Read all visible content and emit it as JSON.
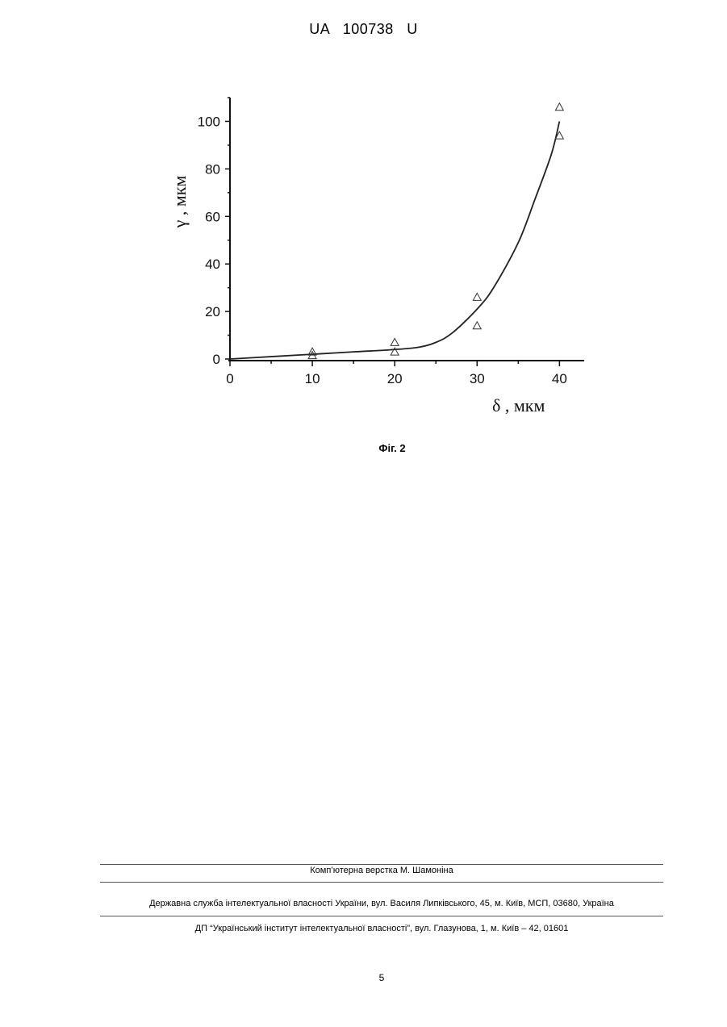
{
  "document": {
    "header": "UA   100738   U",
    "figure_caption": "Фіг. 2",
    "credit": "Комп’ютерна верстка М. Шамоніна",
    "publisher_line": "Державна служба інтелектуальної власності України, вул. Василя Липківського, 45, м. Київ, МСП, 03680, Україна",
    "institute_line": "ДП “Український інститут інтелектуальної власності”, вул. Глазунова, 1, м. Київ – 42, 01601",
    "page_number": "5"
  },
  "chart_data": {
    "type": "scatter",
    "title": "",
    "xlabel": "δ , мкм",
    "ylabel": "γ , мкм",
    "xlim": [
      0,
      43
    ],
    "ylim": [
      0,
      110
    ],
    "x_ticks": [
      "0",
      "10",
      "20",
      "30",
      "40"
    ],
    "y_ticks": [
      "0",
      "20",
      "40",
      "60",
      "80",
      "100"
    ],
    "grid": false,
    "series": [
      {
        "kind": "points",
        "marker": "triangle",
        "points": [
          {
            "x": 10,
            "y": 3
          },
          {
            "x": 10,
            "y": 1.5
          },
          {
            "x": 20,
            "y": 7
          },
          {
            "x": 20,
            "y": 3
          },
          {
            "x": 30,
            "y": 26
          },
          {
            "x": 30,
            "y": 14
          },
          {
            "x": 40,
            "y": 106
          },
          {
            "x": 40,
            "y": 94
          }
        ]
      },
      {
        "kind": "curve",
        "points": [
          {
            "x": 0,
            "y": 0
          },
          {
            "x": 5,
            "y": 1
          },
          {
            "x": 10,
            "y": 2
          },
          {
            "x": 15,
            "y": 3
          },
          {
            "x": 20,
            "y": 4
          },
          {
            "x": 23,
            "y": 5
          },
          {
            "x": 25,
            "y": 7
          },
          {
            "x": 27,
            "y": 11
          },
          {
            "x": 30,
            "y": 21
          },
          {
            "x": 32,
            "y": 30
          },
          {
            "x": 35,
            "y": 49
          },
          {
            "x": 37,
            "y": 67
          },
          {
            "x": 39,
            "y": 86
          },
          {
            "x": 40,
            "y": 100
          }
        ]
      }
    ]
  }
}
